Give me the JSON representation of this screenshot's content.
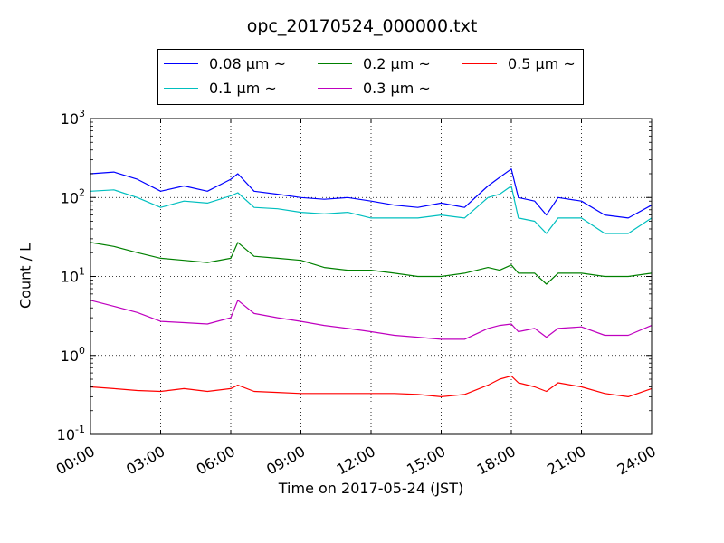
{
  "chart_data": {
    "type": "line",
    "title": "opc_20170524_000000.txt",
    "xlabel": "Time on 2017-05-24 (JST)",
    "ylabel": "Count / L",
    "x_ticks": [
      "00:00",
      "03:00",
      "06:00",
      "09:00",
      "12:00",
      "15:00",
      "18:00",
      "21:00",
      "24:00"
    ],
    "xlim": [
      0,
      24
    ],
    "x_unit": "hours",
    "y_scale": "log",
    "ylim": [
      0.1,
      1000
    ],
    "y_ticks": [
      {
        "base": "10",
        "exp": "-1"
      },
      {
        "base": "10",
        "exp": "0"
      },
      {
        "base": "10",
        "exp": "1"
      },
      {
        "base": "10",
        "exp": "2"
      },
      {
        "base": "10",
        "exp": "3"
      }
    ],
    "grid": true,
    "legend_position": "top-center",
    "x": [
      0,
      1,
      2,
      3,
      4,
      5,
      6,
      6.3,
      7,
      8,
      9,
      10,
      11,
      12,
      13,
      14,
      15,
      16,
      17,
      17.5,
      18,
      18.3,
      19,
      19.5,
      20,
      21,
      22,
      23,
      24
    ],
    "series": [
      {
        "name": "0.08 μm ~",
        "color": "#0000ff",
        "values": [
          200,
          210,
          170,
          120,
          140,
          120,
          170,
          200,
          120,
          110,
          100,
          95,
          100,
          90,
          80,
          75,
          85,
          75,
          140,
          180,
          230,
          100,
          90,
          60,
          100,
          90,
          60,
          55,
          80
        ]
      },
      {
        "name": "0.1 μm ~",
        "color": "#00bfbf",
        "values": [
          120,
          125,
          100,
          75,
          90,
          85,
          105,
          115,
          75,
          72,
          65,
          62,
          65,
          55,
          55,
          55,
          60,
          55,
          100,
          110,
          140,
          55,
          50,
          35,
          55,
          55,
          35,
          35,
          55
        ]
      },
      {
        "name": "0.2 μm ~",
        "color": "#008000",
        "values": [
          27,
          24,
          20,
          17,
          16,
          15,
          17,
          27,
          18,
          17,
          16,
          13,
          12,
          12,
          11,
          10,
          10,
          11,
          13,
          12,
          14,
          11,
          11,
          8,
          11,
          11,
          10,
          10,
          11
        ]
      },
      {
        "name": "0.3 μm ~",
        "color": "#bf00bf",
        "values": [
          5,
          4.2,
          3.5,
          2.7,
          2.6,
          2.5,
          3,
          5,
          3.4,
          3,
          2.7,
          2.4,
          2.2,
          2,
          1.8,
          1.7,
          1.6,
          1.6,
          2.2,
          2.4,
          2.5,
          2,
          2.2,
          1.7,
          2.2,
          2.3,
          1.8,
          1.8,
          2.4
        ]
      },
      {
        "name": "0.5 μm ~",
        "color": "#ff0000",
        "values": [
          0.4,
          0.38,
          0.36,
          0.35,
          0.38,
          0.35,
          0.38,
          0.42,
          0.35,
          0.34,
          0.33,
          0.33,
          0.33,
          0.33,
          0.33,
          0.32,
          0.3,
          0.32,
          0.42,
          0.5,
          0.55,
          0.45,
          0.4,
          0.35,
          0.45,
          0.4,
          0.33,
          0.3,
          0.38
        ]
      }
    ]
  }
}
